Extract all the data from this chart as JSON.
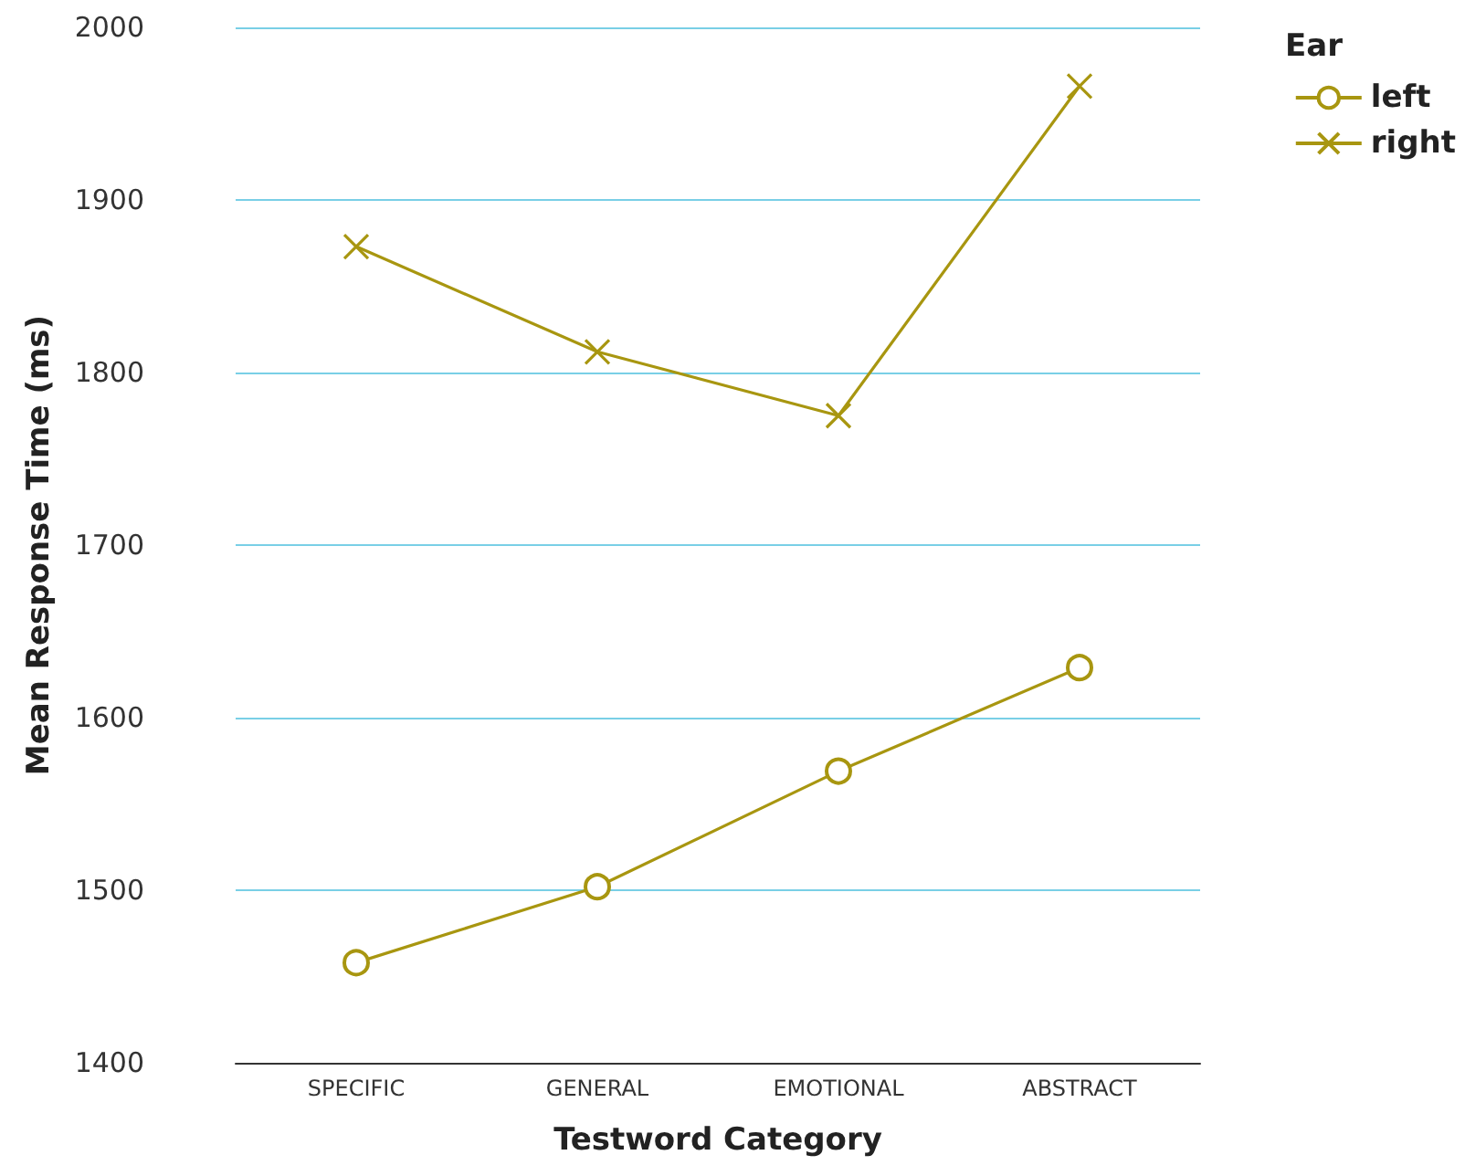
{
  "chart_data": {
    "type": "line",
    "xlabel": "Testword Category",
    "ylabel": "Mean Response Time (ms)",
    "legend_title": "Ear",
    "categories": [
      "SPECIFIC",
      "GENERAL",
      "EMOTIONAL",
      "ABSTRACT"
    ],
    "series": [
      {
        "name": "left",
        "color": "#a89610",
        "marker": "circle",
        "values": [
          1458,
          1502,
          1569,
          1629
        ]
      },
      {
        "name": "right",
        "color": "#a89610",
        "marker": "cross",
        "values": [
          1873,
          1812,
          1775,
          1966
        ]
      }
    ],
    "ylim": [
      1400,
      2000
    ],
    "yticks": [
      1400,
      1500,
      1600,
      1700,
      1800,
      1900,
      2000
    ],
    "grid": "y",
    "legend": "top right"
  }
}
